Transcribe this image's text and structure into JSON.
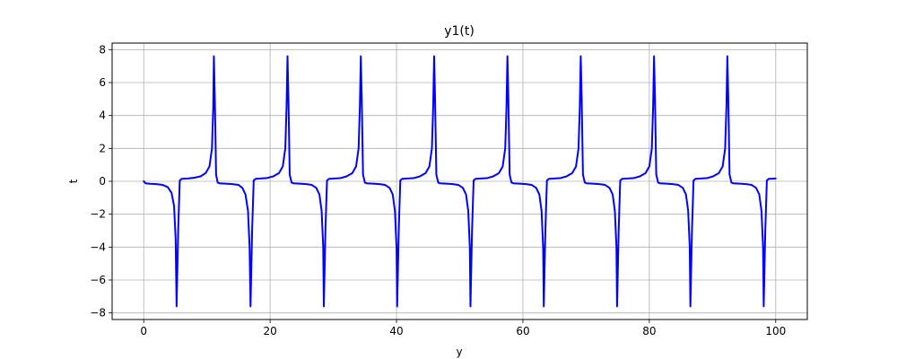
{
  "chart_data": {
    "type": "line",
    "title": "y1(t)",
    "xlabel": "y",
    "ylabel": "t",
    "xlim": [
      -5,
      105
    ],
    "ylim": [
      -8.4,
      8.4
    ],
    "xticks": [
      0,
      20,
      40,
      60,
      80,
      100
    ],
    "yticks": [
      -8,
      -6,
      -4,
      -2,
      0,
      2,
      4,
      6,
      8
    ],
    "xtick_labels": [
      "0",
      "20",
      "40",
      "60",
      "80",
      "100"
    ],
    "ytick_labels": [
      "−8",
      "−6",
      "−4",
      "−2",
      "0",
      "2",
      "4",
      "6",
      "8"
    ],
    "grid": true,
    "series": [
      {
        "color": "#0000ff",
        "points": [
          [
            0,
            0.0
          ],
          [
            0.3,
            -0.12
          ],
          [
            1,
            -0.15
          ],
          [
            2,
            -0.17
          ],
          [
            3,
            -0.22
          ],
          [
            3.8,
            -0.35
          ],
          [
            4.4,
            -0.7
          ],
          [
            4.8,
            -1.5
          ],
          [
            5.05,
            -3.5
          ],
          [
            5.2,
            -7.6
          ],
          [
            5.45,
            -3.0
          ],
          [
            5.7,
            0.05
          ],
          [
            6,
            0.15
          ],
          [
            7,
            0.17
          ],
          [
            8,
            0.22
          ],
          [
            9,
            0.3
          ],
          [
            9.8,
            0.5
          ],
          [
            10.4,
            0.9
          ],
          [
            10.8,
            2.0
          ],
          [
            11.0,
            4.5
          ],
          [
            11.1,
            7.6
          ],
          [
            11.25,
            5.0
          ],
          [
            11.45,
            0.4
          ],
          [
            11.7,
            -0.08
          ],
          [
            12,
            -0.12
          ],
          [
            13,
            -0.14
          ],
          [
            14,
            -0.17
          ],
          [
            15,
            -0.22
          ],
          [
            15.6,
            -0.4
          ],
          [
            16.1,
            -0.8
          ],
          [
            16.5,
            -1.8
          ],
          [
            16.75,
            -4.0
          ],
          [
            16.9,
            -7.6
          ],
          [
            17.15,
            -3.0
          ],
          [
            17.4,
            0.05
          ],
          [
            17.7,
            0.15
          ],
          [
            18.5,
            0.17
          ],
          [
            19.5,
            0.2
          ],
          [
            20.5,
            0.3
          ],
          [
            21.4,
            0.5
          ],
          [
            22.0,
            0.9
          ],
          [
            22.4,
            2.0
          ],
          [
            22.6,
            4.5
          ],
          [
            22.75,
            7.6
          ],
          [
            22.9,
            5.0
          ],
          [
            23.1,
            0.4
          ],
          [
            23.4,
            -0.08
          ],
          [
            23.7,
            -0.12
          ],
          [
            24.7,
            -0.14
          ],
          [
            25.7,
            -0.17
          ],
          [
            26.6,
            -0.22
          ],
          [
            27.3,
            -0.4
          ],
          [
            27.8,
            -0.8
          ],
          [
            28.15,
            -1.8
          ],
          [
            28.4,
            -4.0
          ],
          [
            28.5,
            -7.6
          ],
          [
            28.75,
            -3.0
          ],
          [
            29.0,
            0.05
          ],
          [
            29.3,
            0.15
          ],
          [
            30.2,
            0.17
          ],
          [
            31.2,
            0.2
          ],
          [
            32.1,
            0.3
          ],
          [
            33.0,
            0.5
          ],
          [
            33.6,
            0.9
          ],
          [
            34.0,
            2.0
          ],
          [
            34.2,
            4.5
          ],
          [
            34.35,
            7.6
          ],
          [
            34.5,
            5.0
          ],
          [
            34.7,
            0.4
          ],
          [
            35.0,
            -0.08
          ],
          [
            35.3,
            -0.12
          ],
          [
            36.3,
            -0.14
          ],
          [
            37.3,
            -0.17
          ],
          [
            38.2,
            -0.22
          ],
          [
            38.9,
            -0.4
          ],
          [
            39.4,
            -0.8
          ],
          [
            39.75,
            -1.8
          ],
          [
            40.0,
            -4.0
          ],
          [
            40.1,
            -7.6
          ],
          [
            40.35,
            -3.0
          ],
          [
            40.6,
            0.05
          ],
          [
            40.9,
            0.15
          ],
          [
            41.8,
            0.17
          ],
          [
            42.8,
            0.2
          ],
          [
            43.7,
            0.3
          ],
          [
            44.6,
            0.5
          ],
          [
            45.2,
            0.9
          ],
          [
            45.6,
            2.0
          ],
          [
            45.8,
            4.5
          ],
          [
            45.95,
            7.6
          ],
          [
            46.1,
            5.0
          ],
          [
            46.3,
            0.4
          ],
          [
            46.6,
            -0.08
          ],
          [
            46.9,
            -0.12
          ],
          [
            47.9,
            -0.14
          ],
          [
            48.9,
            -0.17
          ],
          [
            49.8,
            -0.22
          ],
          [
            50.5,
            -0.4
          ],
          [
            51.0,
            -0.8
          ],
          [
            51.35,
            -1.8
          ],
          [
            51.6,
            -4.0
          ],
          [
            51.7,
            -7.6
          ],
          [
            51.95,
            -3.0
          ],
          [
            52.2,
            0.05
          ],
          [
            52.5,
            0.15
          ],
          [
            53.4,
            0.17
          ],
          [
            54.4,
            0.2
          ],
          [
            55.3,
            0.3
          ],
          [
            56.2,
            0.5
          ],
          [
            56.8,
            0.9
          ],
          [
            57.2,
            2.0
          ],
          [
            57.4,
            4.5
          ],
          [
            57.55,
            7.6
          ],
          [
            57.7,
            5.0
          ],
          [
            57.9,
            0.4
          ],
          [
            58.2,
            -0.08
          ],
          [
            58.5,
            -0.12
          ],
          [
            59.5,
            -0.14
          ],
          [
            60.5,
            -0.17
          ],
          [
            61.4,
            -0.22
          ],
          [
            62.1,
            -0.4
          ],
          [
            62.6,
            -0.8
          ],
          [
            62.95,
            -1.8
          ],
          [
            63.2,
            -4.0
          ],
          [
            63.3,
            -7.6
          ],
          [
            63.55,
            -3.0
          ],
          [
            63.8,
            0.05
          ],
          [
            64.1,
            0.15
          ],
          [
            65.0,
            0.17
          ],
          [
            66.0,
            0.2
          ],
          [
            66.9,
            0.3
          ],
          [
            67.8,
            0.5
          ],
          [
            68.4,
            0.9
          ],
          [
            68.8,
            2.0
          ],
          [
            69.0,
            4.5
          ],
          [
            69.15,
            7.6
          ],
          [
            69.3,
            5.0
          ],
          [
            69.5,
            0.4
          ],
          [
            69.8,
            -0.08
          ],
          [
            70.1,
            -0.12
          ],
          [
            71.1,
            -0.14
          ],
          [
            72.1,
            -0.17
          ],
          [
            73.0,
            -0.22
          ],
          [
            73.7,
            -0.4
          ],
          [
            74.2,
            -0.8
          ],
          [
            74.55,
            -1.8
          ],
          [
            74.8,
            -4.0
          ],
          [
            74.9,
            -7.6
          ],
          [
            75.15,
            -3.0
          ],
          [
            75.4,
            0.05
          ],
          [
            75.7,
            0.15
          ],
          [
            76.6,
            0.17
          ],
          [
            77.6,
            0.2
          ],
          [
            78.5,
            0.3
          ],
          [
            79.4,
            0.5
          ],
          [
            80.0,
            0.9
          ],
          [
            80.4,
            2.0
          ],
          [
            80.6,
            4.5
          ],
          [
            80.75,
            7.6
          ],
          [
            80.9,
            5.0
          ],
          [
            81.1,
            0.4
          ],
          [
            81.4,
            -0.08
          ],
          [
            81.7,
            -0.12
          ],
          [
            82.7,
            -0.14
          ],
          [
            83.7,
            -0.17
          ],
          [
            84.6,
            -0.22
          ],
          [
            85.3,
            -0.4
          ],
          [
            85.8,
            -0.8
          ],
          [
            86.15,
            -1.8
          ],
          [
            86.4,
            -4.0
          ],
          [
            86.5,
            -7.6
          ],
          [
            86.75,
            -3.0
          ],
          [
            87.0,
            0.05
          ],
          [
            87.3,
            0.15
          ],
          [
            88.2,
            0.17
          ],
          [
            89.2,
            0.2
          ],
          [
            90.1,
            0.3
          ],
          [
            91.0,
            0.5
          ],
          [
            91.6,
            0.9
          ],
          [
            92.0,
            2.0
          ],
          [
            92.2,
            4.5
          ],
          [
            92.35,
            7.6
          ],
          [
            92.5,
            5.0
          ],
          [
            92.7,
            0.4
          ],
          [
            93.0,
            -0.08
          ],
          [
            93.3,
            -0.12
          ],
          [
            94.3,
            -0.14
          ],
          [
            95.3,
            -0.17
          ],
          [
            96.2,
            -0.22
          ],
          [
            96.9,
            -0.4
          ],
          [
            97.4,
            -0.8
          ],
          [
            97.75,
            -1.8
          ],
          [
            98.0,
            -4.0
          ],
          [
            98.1,
            -7.6
          ],
          [
            98.35,
            -3.0
          ],
          [
            98.6,
            0.05
          ],
          [
            98.9,
            0.15
          ],
          [
            99.5,
            0.16
          ],
          [
            100,
            0.17
          ]
        ]
      }
    ]
  }
}
